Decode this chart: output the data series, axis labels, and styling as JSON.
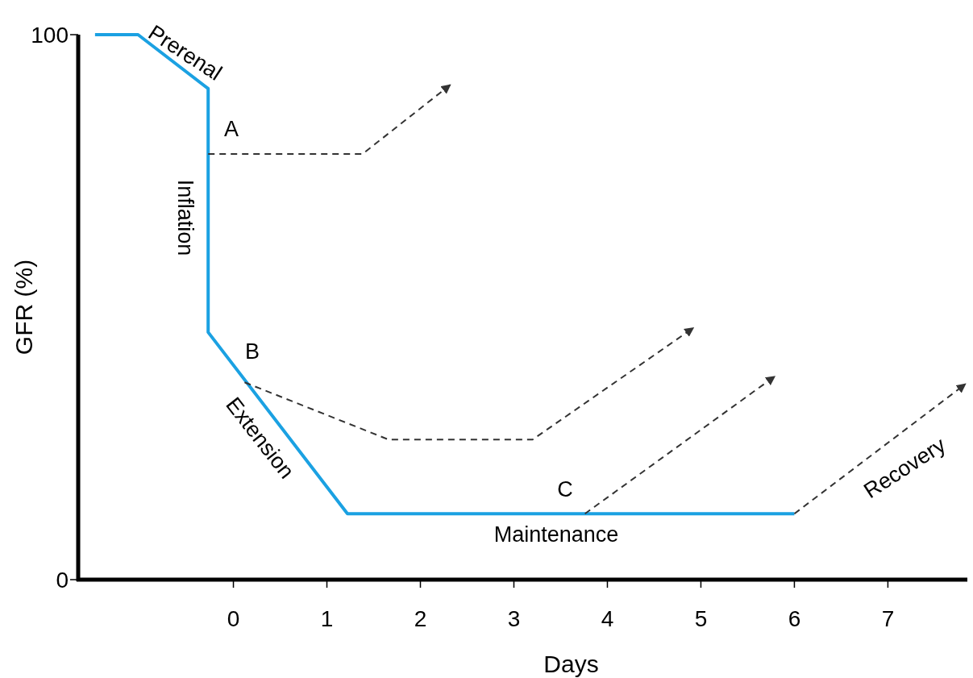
{
  "chart_data": {
    "type": "line",
    "xlabel": "Days",
    "ylabel": "GFR (%)",
    "xlim": [
      -1.66,
      7.85
    ],
    "ylim": [
      0,
      100
    ],
    "xticks": [
      0,
      1,
      2,
      3,
      4,
      5,
      6,
      7
    ],
    "yticks": [
      0,
      100
    ],
    "grid": false,
    "series": [
      {
        "color": "#1ba1e2",
        "line_style": "solid",
        "x": [
          -1.48,
          -1.02,
          -0.27,
          -0.27,
          1.22,
          6.0
        ],
        "values": [
          100,
          100,
          90.1,
          45.4,
          12.1,
          12.1
        ]
      },
      {
        "color": "#333333",
        "line_style": "dashed",
        "x": [
          -0.27,
          1.38,
          2.32
        ],
        "values": [
          78.1,
          78.1,
          90.8
        ]
      },
      {
        "color": "#333333",
        "line_style": "dashed",
        "x": [
          0.12,
          1.66,
          3.2,
          4.92
        ],
        "values": [
          36.2,
          25.7,
          25.7,
          46.2
        ]
      },
      {
        "color": "#333333",
        "line_style": "dashed",
        "x": [
          3.76,
          5.79
        ],
        "values": [
          12.1,
          37.3
        ]
      },
      {
        "color": "#333333",
        "line_style": "dashed",
        "x": [
          6.0,
          7.83
        ],
        "values": [
          12.1,
          35.9
        ]
      }
    ],
    "annotations": [
      "Prerenal",
      "A",
      "Inflation",
      "B",
      "Extension",
      "C",
      "Maintenance",
      "Recovery"
    ]
  }
}
